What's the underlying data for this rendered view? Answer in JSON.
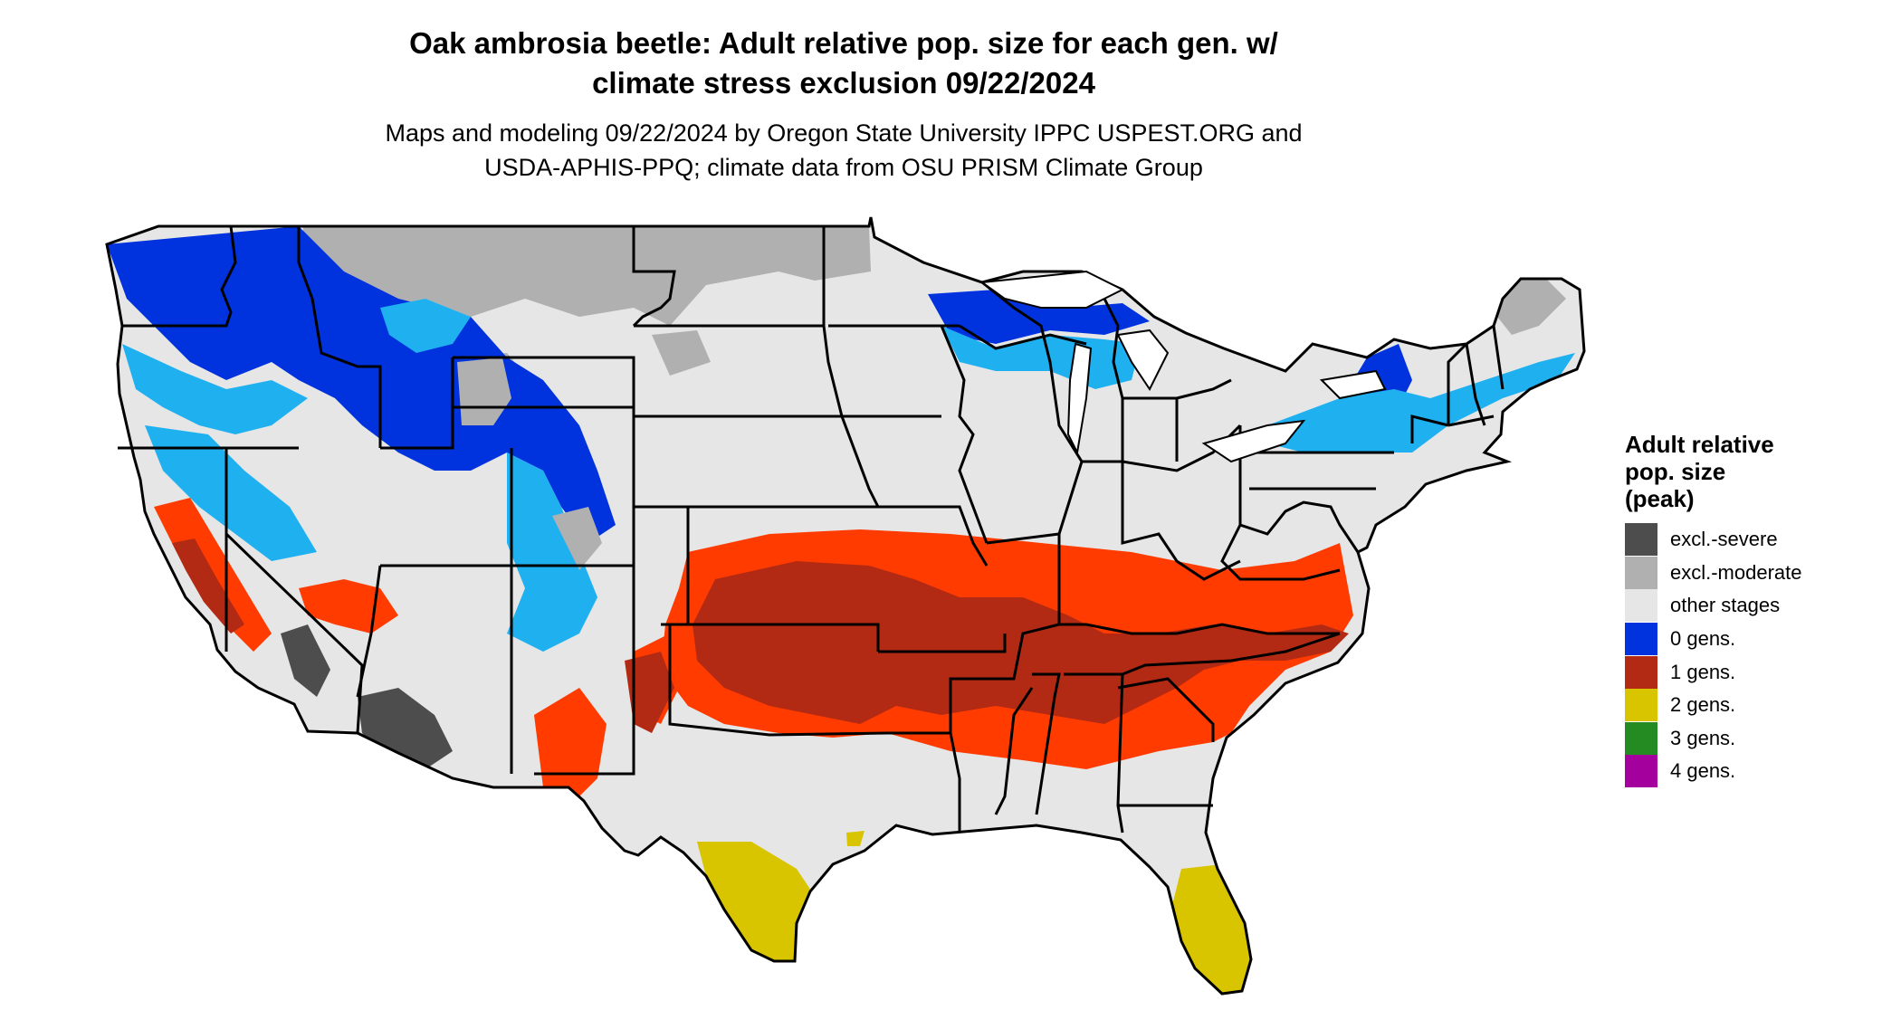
{
  "title": {
    "line1": "Oak ambrosia beetle: Adult relative pop. size for each gen. w/",
    "line2": "climate stress exclusion 09/22/2024"
  },
  "subtitle": {
    "line1": "Maps and modeling 09/22/2024 by Oregon State University IPPC USPEST.ORG and",
    "line2": "USDA-APHIS-PPQ; climate data from OSU PRISM Climate Group"
  },
  "legend": {
    "title_line1": "Adult relative",
    "title_line2": "pop. size",
    "title_line3": "(peak)",
    "items": [
      {
        "label": "excl.-severe",
        "color": "#4d4d4d"
      },
      {
        "label": "excl.-moderate",
        "color": "#b0b0b0"
      },
      {
        "label": "other stages",
        "color": "#e6e6e6"
      },
      {
        "label": "0 gens.",
        "color": "#0033dd"
      },
      {
        "label": "1 gens.",
        "color": "#b22a14"
      },
      {
        "label": "2 gens.",
        "color": "#d9c400"
      },
      {
        "label": "3 gens.",
        "color": "#238b22"
      },
      {
        "label": "4 gens.",
        "color": "#a3009e"
      }
    ]
  },
  "map_colors": {
    "other_stages": "#e6e6e6",
    "excl_moderate": "#b0b0b0",
    "excl_severe": "#4d4d4d",
    "zero_gens_dark": "#0033dd",
    "zero_gens_light": "#1fb0f0",
    "one_gen_dark": "#b22a14",
    "one_gen_bright": "#ff3b00",
    "two_gens": "#d9c400",
    "borders": "#000000"
  }
}
